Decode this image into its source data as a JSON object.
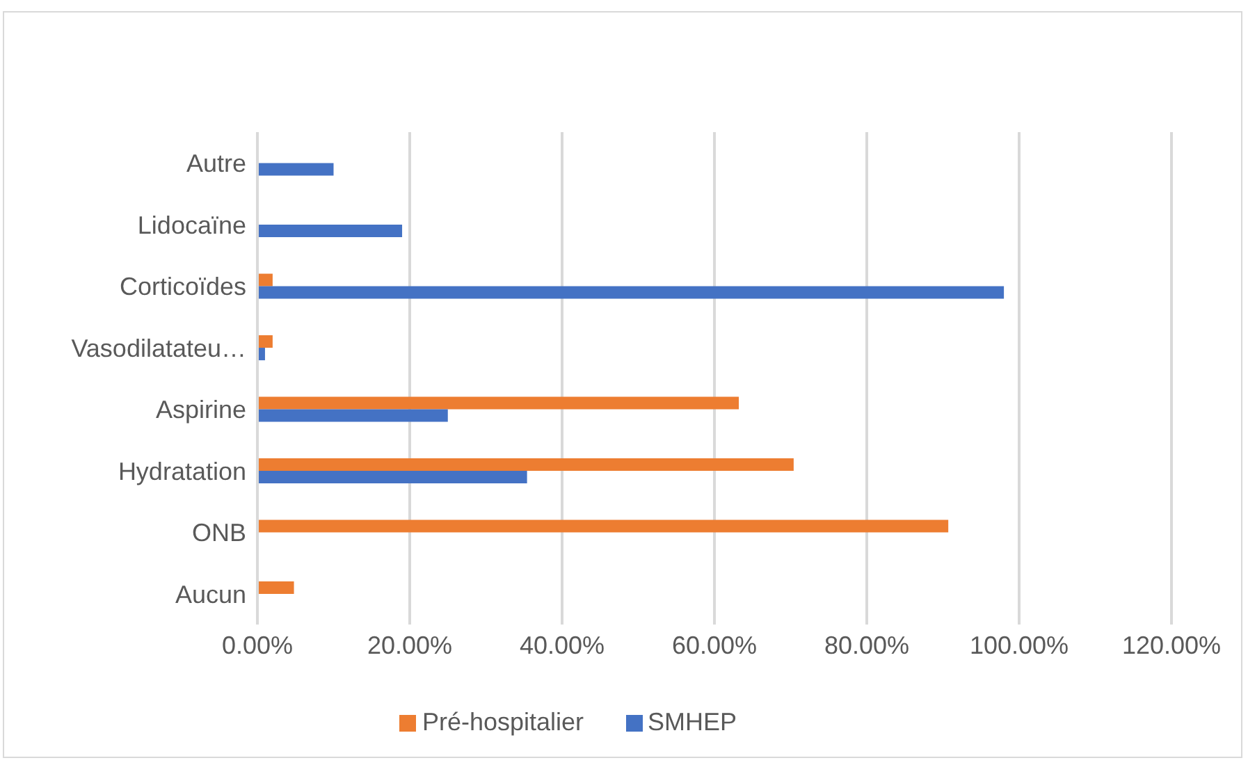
{
  "chart_data": {
    "type": "bar",
    "orientation": "horizontal",
    "categories": [
      "Autre",
      "Lidocaïne",
      "Corticoïdes",
      "Vasodilatateu…",
      "Aspirine",
      "Hydratation",
      "ONB",
      "Aucun"
    ],
    "series": [
      {
        "name": "Pré-hospitalier",
        "color": "#ed7d31",
        "values": [
          null,
          null,
          2,
          2,
          63.2,
          70.4,
          90.7,
          4.8
        ]
      },
      {
        "name": "SMHEP",
        "color": "#4472c4",
        "values": [
          10,
          19,
          98,
          1,
          25,
          35.4,
          null,
          null
        ]
      }
    ],
    "xlim": [
      0,
      120
    ],
    "xticks": [
      {
        "value": 0,
        "label": "0.00%"
      },
      {
        "value": 20,
        "label": "20.00%"
      },
      {
        "value": 40,
        "label": "40.00%"
      },
      {
        "value": 60,
        "label": "60.00%"
      },
      {
        "value": 80,
        "label": "80.00%"
      },
      {
        "value": 100,
        "label": "100.00%"
      },
      {
        "value": 120,
        "label": "120.00%"
      }
    ],
    "grid": "x",
    "legend": "bottom"
  }
}
